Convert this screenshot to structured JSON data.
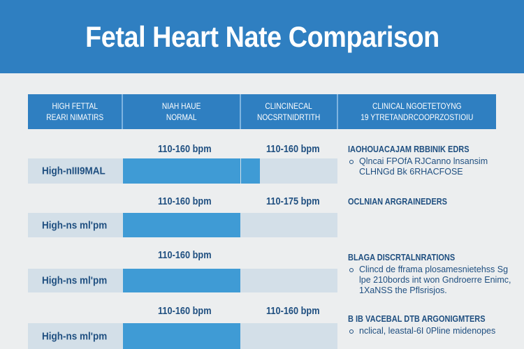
{
  "title": "Fetal Heart Nate Comparison",
  "headers": [
    "HIGH FETTAL\nREARI NIMATIRS",
    "NIAH HAUE\nNORMAL",
    "CLINCINECAL\nNOCSRTNIDRTITH",
    "CLINICAL NGOETETOYNG\n19 YTRETANDRCOOPRZOSTIOIU"
  ],
  "rows": [
    {
      "label": "High-nIII9MAL",
      "value1": "110-160 bpm",
      "value2": "110-160 bpm",
      "fill_percent": 75
    },
    {
      "label": "High-ns ml'pm",
      "value1": "110-160 bpm",
      "value2": "110-175 bpm",
      "fill_percent": 56
    },
    {
      "label": "High-ns ml'pm",
      "value1": "110-160 bpm",
      "value2": "",
      "fill_percent": 56
    },
    {
      "label": "High-ns ml'pm",
      "value1": "110-160 bpm",
      "value2": "110-160 bpm",
      "fill_percent": 56
    }
  ],
  "notes": [
    {
      "heading": "IAOHOUACAJAM RBBINIK EDRS",
      "bullet": "Qlncai FPOfA RJCanno lnsansim CLHNGd Bk 6RHACFOSE"
    },
    {
      "heading": "OCLNIAN ARGRAINEDERS",
      "bullet": ""
    },
    {
      "heading": "BLAGA DISCRTALNRATIONS",
      "bullet": "Clincd de fframa plosamesnietehss Sg lpe 210bords int won Gndroerre Enimc, 1XaNSS the Pflsrisjos."
    },
    {
      "heading": "B IB VACEBAL DTB ARGONIGMTERS",
      "bullet": "nclical, leastal-6I 0Pline midenopes"
    }
  ],
  "colors": {
    "header": "#2f7fc1",
    "fill": "#3f9bd5",
    "track": "#d3dfe8",
    "text": "#1f4f80"
  }
}
